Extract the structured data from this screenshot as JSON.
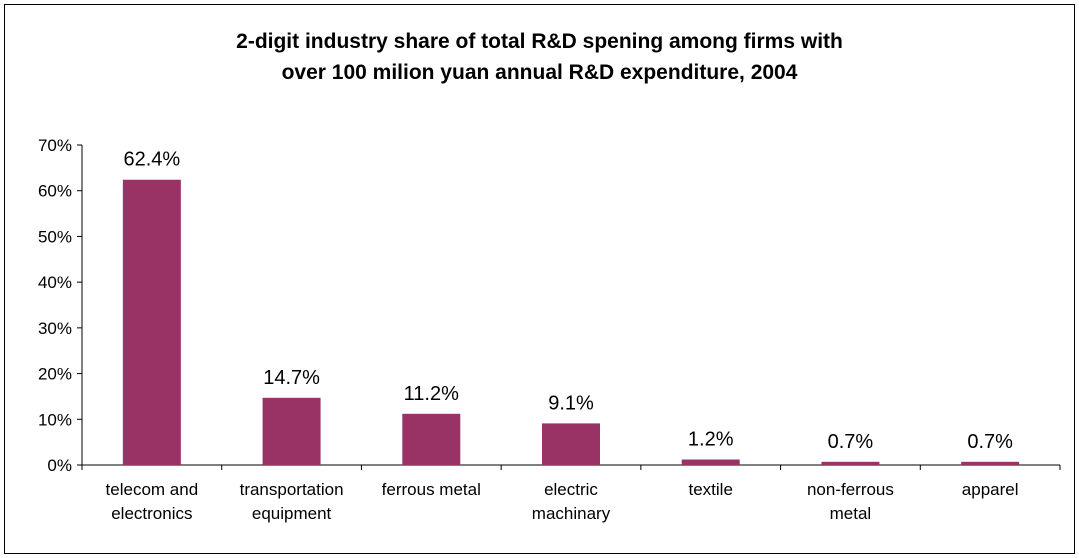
{
  "chart_data": {
    "type": "bar",
    "title": "2-digit industry share of total R&D spening  among firms with\nover 100 milion yuan annual R&D expenditure, 2004",
    "xlabel": "",
    "ylabel": "",
    "categories": [
      [
        "telecom and",
        "electronics"
      ],
      [
        "transportation",
        "equipment"
      ],
      [
        "ferrous metal"
      ],
      [
        "electric",
        "machinary"
      ],
      [
        "textile"
      ],
      [
        "non-ferrous",
        "metal"
      ],
      [
        "apparel"
      ]
    ],
    "values": [
      62.4,
      14.7,
      11.2,
      9.1,
      1.2,
      0.7,
      0.7
    ],
    "data_labels": [
      "62.4%",
      "14.7%",
      "11.2%",
      "9.1%",
      "1.2%",
      "0.7%",
      "0.7%"
    ],
    "yticks": [
      "0%",
      "10%",
      "20%",
      "30%",
      "40%",
      "50%",
      "60%",
      "70%"
    ],
    "ylim": [
      0,
      70
    ],
    "grid": false,
    "legend": "none",
    "bar_color": "#993366"
  }
}
